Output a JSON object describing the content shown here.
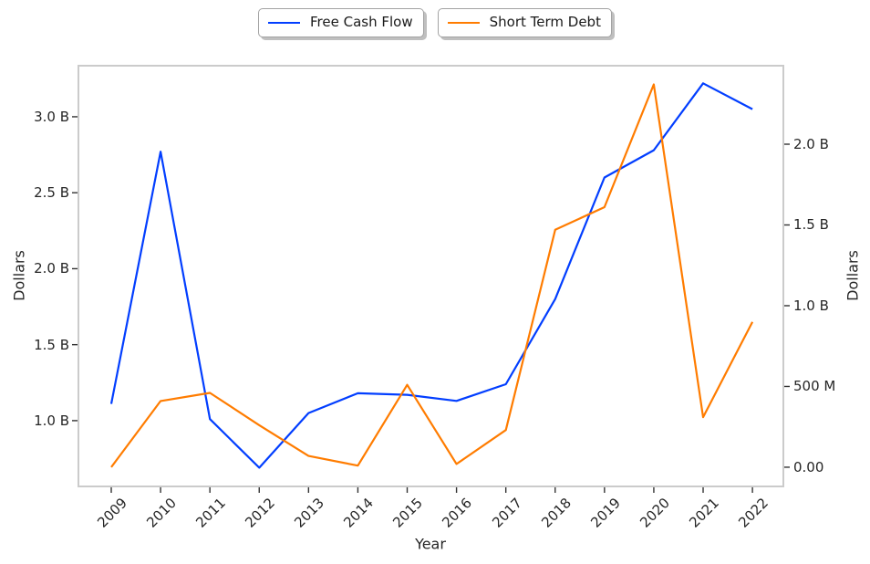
{
  "legend": [
    {
      "label": "Free Cash Flow",
      "color": "#023eff"
    },
    {
      "label": "Short Term Debt",
      "color": "#ff7c00"
    }
  ],
  "axis_labels": {
    "x": "Year",
    "y_left": "Dollars",
    "y_right": "Dollars"
  },
  "chart_data": {
    "type": "line",
    "title": "",
    "xlabel": "Year",
    "ylabel_left": "Dollars",
    "ylabel_right": "Dollars",
    "grid": false,
    "legend_position": "top-center",
    "categories": [
      "2009",
      "2010",
      "2011",
      "2012",
      "2013",
      "2014",
      "2015",
      "2016",
      "2017",
      "2018",
      "2019",
      "2020",
      "2021",
      "2022"
    ],
    "series": [
      {
        "name": "Free Cash Flow",
        "axis": "left",
        "color": "#023eff",
        "units": "billions of dollars",
        "values": [
          1.11,
          2.77,
          1.01,
          0.69,
          1.05,
          1.18,
          1.17,
          1.13,
          1.24,
          1.8,
          2.6,
          2.78,
          3.22,
          3.05
        ]
      },
      {
        "name": "Short Term Debt",
        "axis": "right",
        "color": "#ff7c00",
        "units": "billions of dollars",
        "values": [
          0.0,
          0.41,
          0.46,
          0.26,
          0.07,
          0.01,
          0.51,
          0.02,
          0.23,
          1.47,
          1.61,
          2.37,
          0.31,
          0.9
        ]
      }
    ],
    "yticks_left": {
      "values": [
        1.0,
        1.5,
        2.0,
        2.5,
        3.0
      ],
      "labels": [
        "1.0 B",
        "1.5 B",
        "2.0 B",
        "2.5 B",
        "3.0 B"
      ]
    },
    "yticks_right": {
      "values": [
        0.0,
        0.5,
        1.0,
        1.5,
        2.0
      ],
      "labels": [
        "0.00",
        "500 M",
        "1.0 B",
        "1.5 B",
        "2.0 B"
      ]
    },
    "ylim_left": [
      0.567,
      3.336
    ],
    "ylim_right": [
      -0.119,
      2.486
    ]
  }
}
